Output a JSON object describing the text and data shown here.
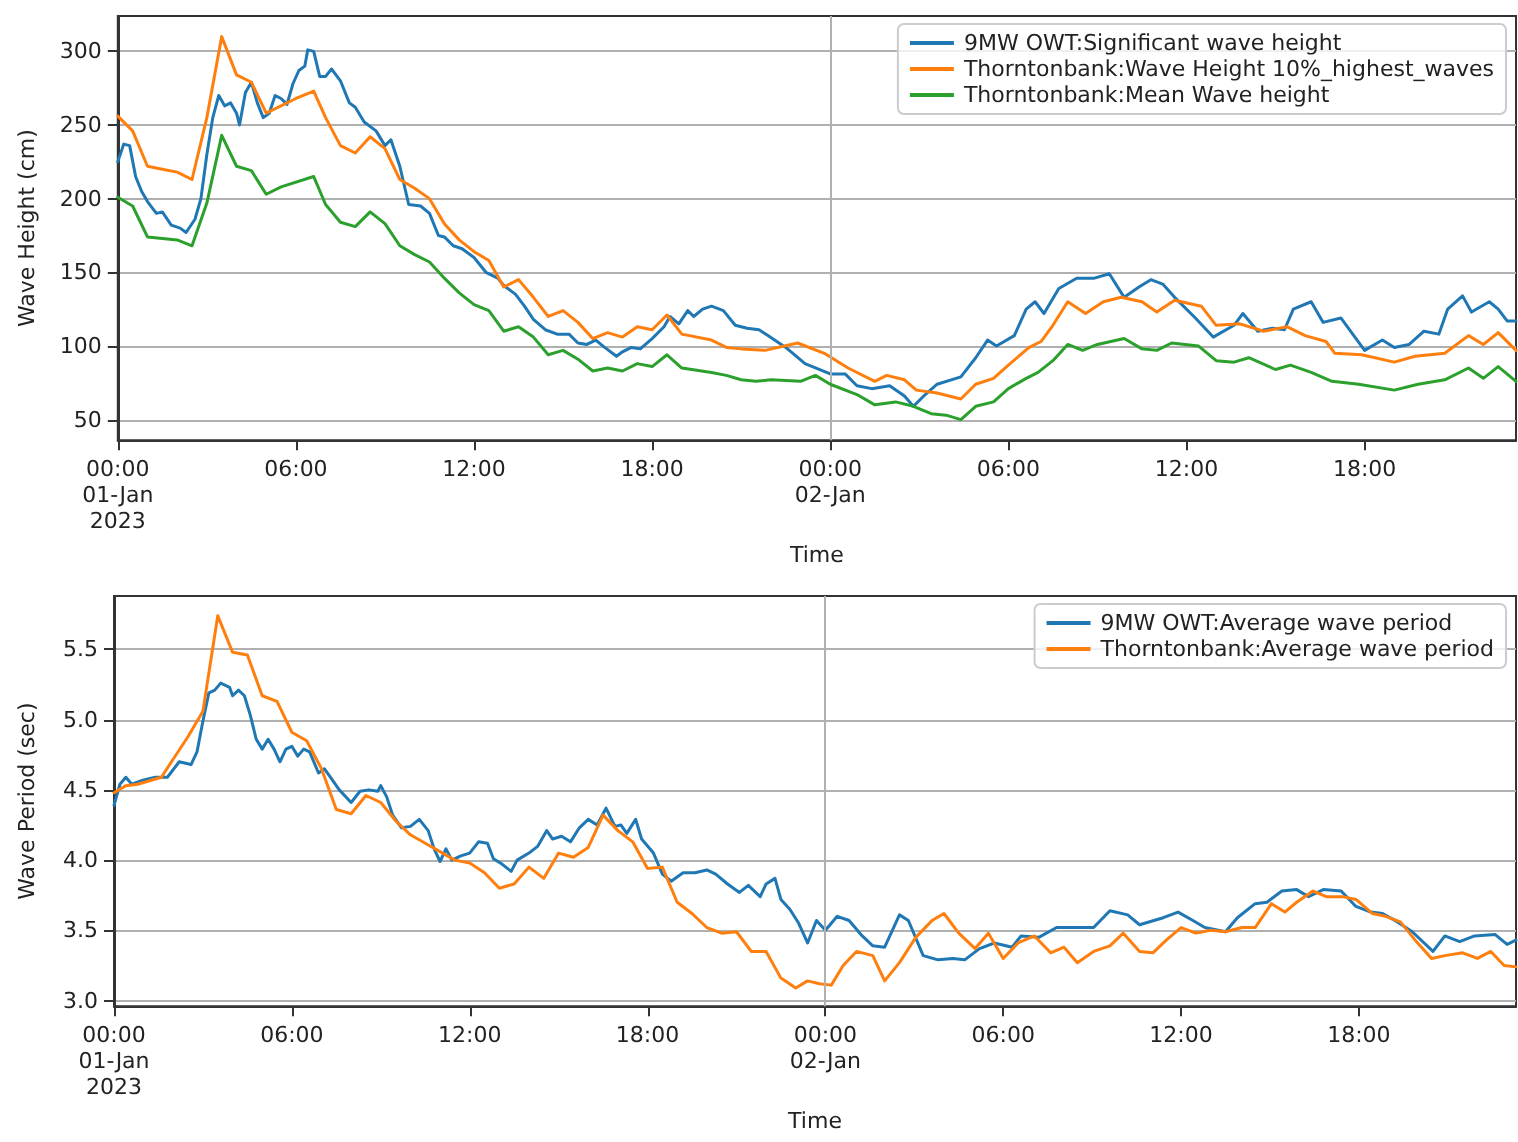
{
  "chart_data": [
    {
      "type": "line",
      "xlabel": "Time",
      "ylabel": "Wave Height (cm)",
      "xlim": [
        "2023-01-01T00:00",
        "2023-01-02T23:06"
      ],
      "ylim": [
        36,
        324
      ],
      "xticks": [
        {
          "value": "2023-01-01T00:00",
          "label": "00:00\n01-Jan\n2023"
        },
        {
          "value": "2023-01-01T06:00",
          "label": "06:00"
        },
        {
          "value": "2023-01-01T12:00",
          "label": "12:00"
        },
        {
          "value": "2023-01-01T18:00",
          "label": "18:00"
        },
        {
          "value": "2023-01-02T00:00",
          "label": "00:00\n02-Jan"
        },
        {
          "value": "2023-01-02T06:00",
          "label": "06:00"
        },
        {
          "value": "2023-01-02T12:00",
          "label": "12:00"
        },
        {
          "value": "2023-01-02T18:00",
          "label": "18:00"
        }
      ],
      "yticks": [
        50,
        100,
        150,
        200,
        250,
        300
      ],
      "grid": "y",
      "legend": "top right",
      "line_style": "solid",
      "marker": "none",
      "ref_lines": [
        {
          "axis": "x",
          "value": "2023-01-02T00:00",
          "color": "#b0b0b0"
        }
      ],
      "series": [
        {
          "name": "9MW OWT:Significant wave height",
          "color": "#1f77b4",
          "x": [
            "2023-01-01T00:00",
            "2023-01-01T00:12",
            "2023-01-01T00:24",
            "2023-01-01T00:36",
            "2023-01-01T00:48",
            "2023-01-01T01:00",
            "2023-01-01T01:18",
            "2023-01-01T01:30",
            "2023-01-01T01:48",
            "2023-01-01T02:06",
            "2023-01-01T02:18",
            "2023-01-01T02:36",
            "2023-01-01T02:48",
            "2023-01-01T03:00",
            "2023-01-01T03:12",
            "2023-01-01T03:24",
            "2023-01-01T03:36",
            "2023-01-01T03:48",
            "2023-01-01T04:00",
            "2023-01-01T04:06",
            "2023-01-01T04:18",
            "2023-01-01T04:30",
            "2023-01-01T04:42",
            "2023-01-01T04:54",
            "2023-01-01T05:06",
            "2023-01-01T05:18",
            "2023-01-01T05:30",
            "2023-01-01T05:42",
            "2023-01-01T05:54",
            "2023-01-01T06:06",
            "2023-01-01T06:18",
            "2023-01-01T06:24",
            "2023-01-01T06:36",
            "2023-01-01T06:48",
            "2023-01-01T07:00",
            "2023-01-01T07:12",
            "2023-01-01T07:30",
            "2023-01-01T07:48",
            "2023-01-01T08:00",
            "2023-01-01T08:18",
            "2023-01-01T08:42",
            "2023-01-01T09:00",
            "2023-01-01T09:12",
            "2023-01-01T09:30",
            "2023-01-01T09:48",
            "2023-01-01T10:12",
            "2023-01-01T10:30",
            "2023-01-01T10:48",
            "2023-01-01T11:00",
            "2023-01-01T11:18",
            "2023-01-01T11:36",
            "2023-01-01T12:00",
            "2023-01-01T12:24",
            "2023-01-01T12:48",
            "2023-01-01T13:00",
            "2023-01-01T13:24",
            "2023-01-01T13:42",
            "2023-01-01T14:00",
            "2023-01-01T14:24",
            "2023-01-01T14:48",
            "2023-01-01T15:12",
            "2023-01-01T15:30",
            "2023-01-01T15:48",
            "2023-01-01T16:06",
            "2023-01-01T16:24",
            "2023-01-01T16:48",
            "2023-01-01T17:00",
            "2023-01-01T17:18",
            "2023-01-01T17:36",
            "2023-01-01T18:00",
            "2023-01-01T18:24",
            "2023-01-01T18:36",
            "2023-01-01T18:54",
            "2023-01-01T19:12",
            "2023-01-01T19:24",
            "2023-01-01T19:42",
            "2023-01-01T20:00",
            "2023-01-01T20:24",
            "2023-01-01T20:48",
            "2023-01-01T21:12",
            "2023-01-01T21:36",
            "2023-01-01T21:54",
            "2023-01-01T22:30",
            "2023-01-01T23:09",
            "2023-01-02T00:00",
            "2023-01-02T00:30",
            "2023-01-02T00:54",
            "2023-01-02T01:24",
            "2023-01-02T02:00",
            "2023-01-02T02:30",
            "2023-01-02T02:48",
            "2023-01-02T03:12",
            "2023-01-02T03:36",
            "2023-01-02T04:24",
            "2023-01-02T04:54",
            "2023-01-02T05:18",
            "2023-01-02T05:36",
            "2023-01-02T06:12",
            "2023-01-02T06:36",
            "2023-01-02T06:54",
            "2023-01-02T07:12",
            "2023-01-02T07:42",
            "2023-01-02T08:18",
            "2023-01-02T08:54",
            "2023-01-02T09:24",
            "2023-01-02T09:54",
            "2023-01-02T10:24",
            "2023-01-02T10:48",
            "2023-01-02T11:12",
            "2023-01-02T11:36",
            "2023-01-02T12:18",
            "2023-01-02T12:54",
            "2023-01-02T13:36",
            "2023-01-02T13:54",
            "2023-01-02T14:24",
            "2023-01-02T14:54",
            "2023-01-02T15:18",
            "2023-01-02T15:36",
            "2023-01-02T16:12",
            "2023-01-02T16:36",
            "2023-01-02T17:12",
            "2023-01-02T17:36",
            "2023-01-02T18:00",
            "2023-01-02T18:36",
            "2023-01-02T19:00",
            "2023-01-02T19:30",
            "2023-01-02T20:00",
            "2023-01-02T20:30",
            "2023-01-02T20:48",
            "2023-01-02T21:18",
            "2023-01-02T21:36",
            "2023-01-02T22:12",
            "2023-01-02T22:30",
            "2023-01-02T22:48",
            "2023-01-02T23:06"
          ],
          "values": [
            225,
            237,
            236,
            215,
            205,
            198,
            190,
            191,
            182,
            180,
            177,
            186,
            200,
            230,
            255,
            270,
            263,
            265,
            258,
            250,
            272,
            279,
            265,
            255,
            258,
            270,
            268,
            264,
            278,
            287,
            290,
            301,
            300,
            283,
            283,
            288,
            280,
            265,
            262,
            252,
            246,
            236,
            240,
            222,
            196,
            195,
            190,
            175,
            174,
            168,
            166,
            160,
            150,
            146,
            141,
            135,
            127,
            118,
            111,
            108,
            108,
            102,
            101,
            104,
            99,
            93,
            96,
            99,
            98,
            105,
            113,
            120,
            115,
            124,
            120,
            125,
            127,
            124,
            114,
            112,
            111,
            107,
            99,
            88,
            81,
            81,
            73,
            71,
            73,
            66,
            59,
            67,
            74,
            79,
            92,
            104,
            100,
            107,
            125,
            130,
            122,
            139,
            146,
            146,
            149,
            133,
            140,
            145,
            142,
            133,
            119,
            106,
            114,
            122,
            110,
            112,
            111,
            125,
            130,
            116,
            119,
            108,
            97,
            104,
            99,
            101,
            110,
            108,
            125,
            134,
            123,
            130,
            125,
            117,
            117
          ]
        },
        {
          "name": "Thorntonbank:Wave Height 10%_highest_waves",
          "color": "#ff7f0e",
          "x": [
            "2023-01-01T00:00",
            "2023-01-01T00:30",
            "2023-01-01T01:00",
            "2023-01-01T01:30",
            "2023-01-01T02:00",
            "2023-01-01T02:30",
            "2023-01-01T03:00",
            "2023-01-01T03:30",
            "2023-01-01T04:00",
            "2023-01-01T04:30",
            "2023-01-01T05:00",
            "2023-01-01T06:00",
            "2023-01-01T06:36",
            "2023-01-01T07:00",
            "2023-01-01T07:30",
            "2023-01-01T08:00",
            "2023-01-01T08:30",
            "2023-01-01T09:00",
            "2023-01-01T09:30",
            "2023-01-01T10:00",
            "2023-01-01T10:30",
            "2023-01-01T11:00",
            "2023-01-01T11:30",
            "2023-01-01T12:00",
            "2023-01-01T12:30",
            "2023-01-01T13:00",
            "2023-01-01T13:30",
            "2023-01-01T14:00",
            "2023-01-01T14:30",
            "2023-01-01T15:00",
            "2023-01-01T15:30",
            "2023-01-01T16:00",
            "2023-01-01T16:30",
            "2023-01-01T17:00",
            "2023-01-01T17:30",
            "2023-01-01T18:00",
            "2023-01-01T18:30",
            "2023-01-01T19:00",
            "2023-01-01T20:00",
            "2023-01-01T20:30",
            "2023-01-01T21:00",
            "2023-01-01T21:48",
            "2023-01-01T22:54",
            "2023-01-01T23:48",
            "2023-01-02T00:36",
            "2023-01-02T01:30",
            "2023-01-02T01:54",
            "2023-01-02T02:30",
            "2023-01-02T02:54",
            "2023-01-02T03:36",
            "2023-01-02T04:24",
            "2023-01-02T04:54",
            "2023-01-02T05:30",
            "2023-01-02T06:00",
            "2023-01-02T06:42",
            "2023-01-02T07:06",
            "2023-01-02T07:30",
            "2023-01-02T08:00",
            "2023-01-02T08:36",
            "2023-01-02T09:12",
            "2023-01-02T09:48",
            "2023-01-02T10:30",
            "2023-01-02T11:00",
            "2023-01-02T11:36",
            "2023-01-02T12:30",
            "2023-01-02T13:00",
            "2023-01-02T13:48",
            "2023-01-02T14:36",
            "2023-01-02T15:24",
            "2023-01-02T16:00",
            "2023-01-02T16:42",
            "2023-01-02T17:00",
            "2023-01-02T17:54",
            "2023-01-02T19:00",
            "2023-01-02T19:42",
            "2023-01-02T20:42",
            "2023-01-02T21:30",
            "2023-01-02T22:00",
            "2023-01-02T22:30",
            "2023-01-02T23:06"
          ],
          "values": [
            256,
            246,
            222,
            220,
            218,
            213,
            255,
            310,
            284,
            279,
            258,
            268,
            273,
            255,
            236,
            231,
            242,
            234,
            213,
            207,
            200,
            183,
            172,
            164,
            158,
            140,
            145,
            133,
            120,
            124,
            116,
            105,
            109,
            106,
            113,
            111,
            121,
            108,
            104,
            99,
            98,
            97,
            102,
            95,
            85,
            76,
            80,
            77,
            70,
            68,
            64,
            74,
            78,
            87,
            99,
            103,
            114,
            130,
            122,
            130,
            133,
            130,
            123,
            131,
            127,
            114,
            115,
            110,
            113,
            107,
            103,
            95,
            94,
            89,
            93,
            95,
            107,
            101,
            109,
            97
          ]
        },
        {
          "name": "Thorntonbank:Mean Wave height",
          "color": "#2ca02c",
          "x": [
            "2023-01-01T00:00",
            "2023-01-01T00:30",
            "2023-01-01T01:00",
            "2023-01-01T02:00",
            "2023-01-01T02:30",
            "2023-01-01T03:00",
            "2023-01-01T03:30",
            "2023-01-01T04:00",
            "2023-01-01T04:30",
            "2023-01-01T05:00",
            "2023-01-01T05:30",
            "2023-01-01T06:36",
            "2023-01-01T07:00",
            "2023-01-01T07:30",
            "2023-01-01T08:00",
            "2023-01-01T08:30",
            "2023-01-01T09:00",
            "2023-01-01T09:30",
            "2023-01-01T10:00",
            "2023-01-01T10:30",
            "2023-01-01T11:00",
            "2023-01-01T11:30",
            "2023-01-01T12:00",
            "2023-01-01T12:30",
            "2023-01-01T13:00",
            "2023-01-01T13:30",
            "2023-01-01T14:00",
            "2023-01-01T14:30",
            "2023-01-01T15:00",
            "2023-01-01T15:30",
            "2023-01-01T16:00",
            "2023-01-01T16:30",
            "2023-01-01T17:00",
            "2023-01-01T17:30",
            "2023-01-01T18:00",
            "2023-01-01T18:30",
            "2023-01-01T19:00",
            "2023-01-01T20:00",
            "2023-01-01T20:30",
            "2023-01-01T21:00",
            "2023-01-01T21:30",
            "2023-01-01T22:00",
            "2023-01-01T23:00",
            "2023-01-01T23:30",
            "2023-01-02T00:00",
            "2023-01-02T00:54",
            "2023-01-02T01:30",
            "2023-01-02T02:12",
            "2023-01-02T02:48",
            "2023-01-02T03:24",
            "2023-01-02T03:54",
            "2023-01-02T04:24",
            "2023-01-02T04:54",
            "2023-01-02T05:30",
            "2023-01-02T06:00",
            "2023-01-02T06:36",
            "2023-01-02T07:00",
            "2023-01-02T07:30",
            "2023-01-02T08:00",
            "2023-01-02T08:30",
            "2023-01-02T09:00",
            "2023-01-02T09:54",
            "2023-01-02T10:30",
            "2023-01-02T11:00",
            "2023-01-02T11:30",
            "2023-01-02T12:24",
            "2023-01-02T13:00",
            "2023-01-02T13:36",
            "2023-01-02T14:06",
            "2023-01-02T15:00",
            "2023-01-02T15:30",
            "2023-01-02T16:12",
            "2023-01-02T16:54",
            "2023-01-02T17:48",
            "2023-01-02T19:00",
            "2023-01-02T19:48",
            "2023-01-02T20:42",
            "2023-01-02T21:30",
            "2023-01-02T22:00",
            "2023-01-02T22:30",
            "2023-01-02T23:06"
          ],
          "values": [
            201,
            195,
            174,
            172,
            168,
            197,
            243,
            222,
            219,
            203,
            208,
            215,
            196,
            184,
            181,
            191,
            183,
            168,
            162,
            157,
            146,
            136,
            128,
            124,
            110,
            113,
            106,
            94,
            97,
            91,
            83,
            85,
            83,
            88,
            86,
            94,
            85,
            82,
            80,
            77,
            76,
            77,
            76,
            80,
            74,
            67,
            60,
            62,
            59,
            54,
            53,
            50,
            59,
            62,
            71,
            78,
            82,
            90,
            101,
            97,
            101,
            105,
            98,
            97,
            102,
            100,
            90,
            89,
            92,
            84,
            87,
            82,
            76,
            74,
            70,
            74,
            77,
            85,
            78,
            86,
            76
          ]
        }
      ]
    },
    {
      "type": "line",
      "xlabel": "Time",
      "ylabel": "Wave Period (sec)",
      "xlim": [
        "2023-01-01T00:00",
        "2023-01-02T23:18"
      ],
      "ylim": [
        2.96,
        5.88
      ],
      "xticks": [
        {
          "value": "2023-01-01T00:00",
          "label": "00:00\n01-Jan\n2023"
        },
        {
          "value": "2023-01-01T06:00",
          "label": "06:00"
        },
        {
          "value": "2023-01-01T12:00",
          "label": "12:00"
        },
        {
          "value": "2023-01-01T18:00",
          "label": "18:00"
        },
        {
          "value": "2023-01-02T00:00",
          "label": "00:00\n02-Jan"
        },
        {
          "value": "2023-01-02T06:00",
          "label": "06:00"
        },
        {
          "value": "2023-01-02T12:00",
          "label": "12:00"
        },
        {
          "value": "2023-01-02T18:00",
          "label": "18:00"
        }
      ],
      "yticks": [
        {
          "value": 3,
          "label": "3.0"
        },
        {
          "value": 3.5,
          "label": "3.5"
        },
        {
          "value": 4,
          "label": "4.0"
        },
        {
          "value": 4.5,
          "label": "4.5"
        },
        {
          "value": 5,
          "label": "5.0"
        },
        {
          "value": 5.5,
          "label": "5.5"
        }
      ],
      "grid": "y",
      "legend": "top right",
      "line_style": "solid",
      "marker": "none",
      "ref_lines": [
        {
          "axis": "x",
          "value": "2023-01-02T00:00",
          "color": "#b0b0b0"
        }
      ],
      "series": [
        {
          "name": "9MW OWT:Average wave period",
          "color": "#1f77b4",
          "x": [
            "2023-01-01T00:00",
            "2023-01-01T00:12",
            "2023-01-01T00:24",
            "2023-01-01T00:36",
            "2023-01-01T01:00",
            "2023-01-01T01:24",
            "2023-01-01T01:48",
            "2023-01-01T02:12",
            "2023-01-01T02:36",
            "2023-01-01T02:48",
            "2023-01-01T03:00",
            "2023-01-01T03:12",
            "2023-01-01T03:24",
            "2023-01-01T03:36",
            "2023-01-01T03:54",
            "2023-01-01T04:00",
            "2023-01-01T04:12",
            "2023-01-01T04:24",
            "2023-01-01T04:36",
            "2023-01-01T04:48",
            "2023-01-01T05:00",
            "2023-01-01T05:12",
            "2023-01-01T05:24",
            "2023-01-01T05:36",
            "2023-01-01T05:48",
            "2023-01-01T06:00",
            "2023-01-01T06:12",
            "2023-01-01T06:24",
            "2023-01-01T06:36",
            "2023-01-01T06:54",
            "2023-01-01T07:06",
            "2023-01-01T07:18",
            "2023-01-01T07:36",
            "2023-01-01T08:00",
            "2023-01-01T08:18",
            "2023-01-01T08:36",
            "2023-01-01T08:54",
            "2023-01-01T09:00",
            "2023-01-01T09:12",
            "2023-01-01T09:24",
            "2023-01-01T09:42",
            "2023-01-01T10:00",
            "2023-01-01T10:18",
            "2023-01-01T10:36",
            "2023-01-01T10:48",
            "2023-01-01T11:00",
            "2023-01-01T11:12",
            "2023-01-01T11:24",
            "2023-01-01T11:42",
            "2023-01-01T12:00",
            "2023-01-01T12:18",
            "2023-01-01T12:36",
            "2023-01-01T12:48",
            "2023-01-01T13:06",
            "2023-01-01T13:24",
            "2023-01-01T13:36",
            "2023-01-01T14:00",
            "2023-01-01T14:18",
            "2023-01-01T14:36",
            "2023-01-01T14:48",
            "2023-01-01T15:06",
            "2023-01-01T15:24",
            "2023-01-01T15:42",
            "2023-01-01T16:00",
            "2023-01-01T16:18",
            "2023-01-01T16:36",
            "2023-01-01T16:54",
            "2023-01-01T17:06",
            "2023-01-01T17:18",
            "2023-01-01T17:36",
            "2023-01-01T17:48",
            "2023-01-01T18:12",
            "2023-01-01T18:30",
            "2023-01-01T18:48",
            "2023-01-01T19:12",
            "2023-01-01T19:36",
            "2023-01-01T20:00",
            "2023-01-01T20:18",
            "2023-01-01T20:42",
            "2023-01-01T21:06",
            "2023-01-01T21:24",
            "2023-01-01T21:48",
            "2023-01-01T22:00",
            "2023-01-01T22:18",
            "2023-01-01T22:30",
            "2023-01-01T22:48",
            "2023-01-01T23:06",
            "2023-01-01T23:24",
            "2023-01-01T23:42",
            "2023-01-02T00:00",
            "2023-01-02T00:24",
            "2023-01-02T00:48",
            "2023-01-02T01:12",
            "2023-01-02T01:36",
            "2023-01-02T02:00",
            "2023-01-02T02:30",
            "2023-01-02T02:48",
            "2023-01-02T03:18",
            "2023-01-02T03:48",
            "2023-01-02T04:18",
            "2023-01-02T04:42",
            "2023-01-02T05:12",
            "2023-01-02T05:42",
            "2023-01-02T06:18",
            "2023-01-02T06:36",
            "2023-01-02T07:12",
            "2023-01-02T07:48",
            "2023-01-02T08:30",
            "2023-01-02T09:03",
            "2023-01-02T09:36",
            "2023-01-02T10:12",
            "2023-01-02T10:36",
            "2023-01-02T11:24",
            "2023-01-02T11:54",
            "2023-01-02T12:24",
            "2023-01-02T12:48",
            "2023-01-02T13:30",
            "2023-01-02T13:54",
            "2023-01-02T14:30",
            "2023-01-02T14:54",
            "2023-01-02T15:24",
            "2023-01-02T15:54",
            "2023-01-02T16:18",
            "2023-01-02T16:48",
            "2023-01-02T17:24",
            "2023-01-02T17:54",
            "2023-01-02T18:24",
            "2023-01-02T18:48",
            "2023-01-02T19:18",
            "2023-01-02T19:48",
            "2023-01-02T20:30",
            "2023-01-02T20:54",
            "2023-01-02T21:24",
            "2023-01-02T21:54",
            "2023-01-02T22:36",
            "2023-01-02T23:00",
            "2023-01-02T23:18"
          ],
          "values": [
            4.39,
            4.54,
            4.59,
            4.54,
            4.57,
            4.59,
            4.59,
            4.7,
            4.68,
            4.77,
            4.99,
            5.19,
            5.21,
            5.26,
            5.23,
            5.17,
            5.21,
            5.17,
            5.03,
            4.86,
            4.79,
            4.86,
            4.79,
            4.7,
            4.79,
            4.81,
            4.74,
            4.79,
            4.77,
            4.62,
            4.65,
            4.59,
            4.5,
            4.41,
            4.49,
            4.5,
            4.49,
            4.53,
            4.45,
            4.32,
            4.23,
            4.24,
            4.29,
            4.21,
            4.08,
            3.99,
            4.08,
            4.0,
            4.03,
            4.05,
            4.13,
            4.12,
            4.01,
            3.97,
            3.92,
            4.0,
            4.05,
            4.1,
            4.21,
            4.15,
            4.17,
            4.13,
            4.23,
            4.29,
            4.25,
            4.37,
            4.24,
            4.25,
            4.19,
            4.29,
            4.15,
            4.05,
            3.9,
            3.85,
            3.91,
            3.91,
            3.93,
            3.9,
            3.83,
            3.77,
            3.82,
            3.74,
            3.83,
            3.87,
            3.72,
            3.65,
            3.55,
            3.41,
            3.57,
            3.5,
            3.6,
            3.57,
            3.47,
            3.39,
            3.38,
            3.61,
            3.57,
            3.32,
            3.29,
            3.3,
            3.29,
            3.37,
            3.41,
            3.38,
            3.46,
            3.45,
            3.52,
            3.52,
            3.52,
            3.64,
            3.61,
            3.54,
            3.59,
            3.63,
            3.57,
            3.52,
            3.49,
            3.59,
            3.69,
            3.7,
            3.78,
            3.79,
            3.74,
            3.79,
            3.78,
            3.67,
            3.63,
            3.62,
            3.56,
            3.49,
            3.35,
            3.46,
            3.42,
            3.46,
            3.47,
            3.4,
            3.43
          ]
        },
        {
          "name": "Thorntonbank:Average wave period",
          "color": "#ff7f0e",
          "x": [
            "2023-01-01T00:00",
            "2023-01-01T00:24",
            "2023-01-01T00:48",
            "2023-01-01T01:36",
            "2023-01-01T02:00",
            "2023-01-01T02:30",
            "2023-01-01T03:00",
            "2023-01-01T03:30",
            "2023-01-01T04:00",
            "2023-01-01T04:30",
            "2023-01-01T05:00",
            "2023-01-01T05:30",
            "2023-01-01T06:00",
            "2023-01-01T06:30",
            "2023-01-01T07:00",
            "2023-01-01T07:30",
            "2023-01-01T08:00",
            "2023-01-01T08:30",
            "2023-01-01T09:00",
            "2023-01-01T09:30",
            "2023-01-01T10:00",
            "2023-01-01T10:30",
            "2023-01-01T11:00",
            "2023-01-01T11:30",
            "2023-01-01T12:00",
            "2023-01-01T12:30",
            "2023-01-01T13:00",
            "2023-01-01T13:30",
            "2023-01-01T14:00",
            "2023-01-01T14:30",
            "2023-01-01T15:00",
            "2023-01-01T15:30",
            "2023-01-01T16:00",
            "2023-01-01T16:30",
            "2023-01-01T17:00",
            "2023-01-01T17:30",
            "2023-01-01T18:00",
            "2023-01-01T18:30",
            "2023-01-01T19:00",
            "2023-01-01T19:30",
            "2023-01-01T20:00",
            "2023-01-01T20:30",
            "2023-01-01T21:00",
            "2023-01-01T21:30",
            "2023-01-01T22:00",
            "2023-01-01T22:30",
            "2023-01-01T23:00",
            "2023-01-01T23:24",
            "2023-01-01T23:48",
            "2023-01-02T00:12",
            "2023-01-02T00:36",
            "2023-01-02T01:03",
            "2023-01-02T01:36",
            "2023-01-02T02:00",
            "2023-01-02T02:30",
            "2023-01-02T03:03",
            "2023-01-02T03:36",
            "2023-01-02T04:00",
            "2023-01-02T04:30",
            "2023-01-02T05:03",
            "2023-01-02T05:30",
            "2023-01-02T06:00",
            "2023-01-02T06:30",
            "2023-01-02T07:03",
            "2023-01-02T07:36",
            "2023-01-02T08:03",
            "2023-01-02T08:30",
            "2023-01-02T09:03",
            "2023-01-02T09:36",
            "2023-01-02T10:03",
            "2023-01-02T10:36",
            "2023-01-02T11:03",
            "2023-01-02T11:30",
            "2023-01-02T12:00",
            "2023-01-02T12:30",
            "2023-01-02T13:00",
            "2023-01-02T13:30",
            "2023-01-02T14:03",
            "2023-01-02T14:30",
            "2023-01-02T15:03",
            "2023-01-02T15:30",
            "2023-01-02T15:54",
            "2023-01-02T16:27",
            "2023-01-02T16:54",
            "2023-01-02T17:27",
            "2023-01-02T17:54",
            "2023-01-02T18:27",
            "2023-01-02T18:54",
            "2023-01-02T19:24",
            "2023-01-02T19:54",
            "2023-01-02T20:27",
            "2023-01-02T20:54",
            "2023-01-02T21:30",
            "2023-01-02T22:00",
            "2023-01-02T22:27",
            "2023-01-02T22:54",
            "2023-01-02T23:18"
          ],
          "values": [
            4.48,
            4.53,
            4.54,
            4.59,
            4.72,
            4.88,
            5.06,
            5.74,
            5.48,
            5.46,
            5.17,
            5.13,
            4.91,
            4.85,
            4.65,
            4.36,
            4.33,
            4.46,
            4.41,
            4.28,
            4.18,
            4.12,
            4.06,
            4.0,
            3.98,
            3.91,
            3.8,
            3.83,
            3.95,
            3.87,
            4.05,
            4.02,
            4.09,
            4.32,
            4.21,
            4.13,
            3.94,
            3.95,
            3.7,
            3.62,
            3.52,
            3.48,
            3.49,
            3.35,
            3.35,
            3.16,
            3.09,
            3.14,
            3.12,
            3.11,
            3.25,
            3.35,
            3.32,
            3.14,
            3.27,
            3.45,
            3.57,
            3.62,
            3.48,
            3.37,
            3.48,
            3.3,
            3.41,
            3.46,
            3.34,
            3.38,
            3.27,
            3.35,
            3.39,
            3.48,
            3.35,
            3.34,
            3.43,
            3.52,
            3.48,
            3.5,
            3.49,
            3.52,
            3.52,
            3.69,
            3.63,
            3.7,
            3.78,
            3.74,
            3.74,
            3.72,
            3.62,
            3.6,
            3.56,
            3.43,
            3.3,
            3.32,
            3.34,
            3.3,
            3.35,
            3.25,
            3.24
          ]
        }
      ]
    }
  ]
}
